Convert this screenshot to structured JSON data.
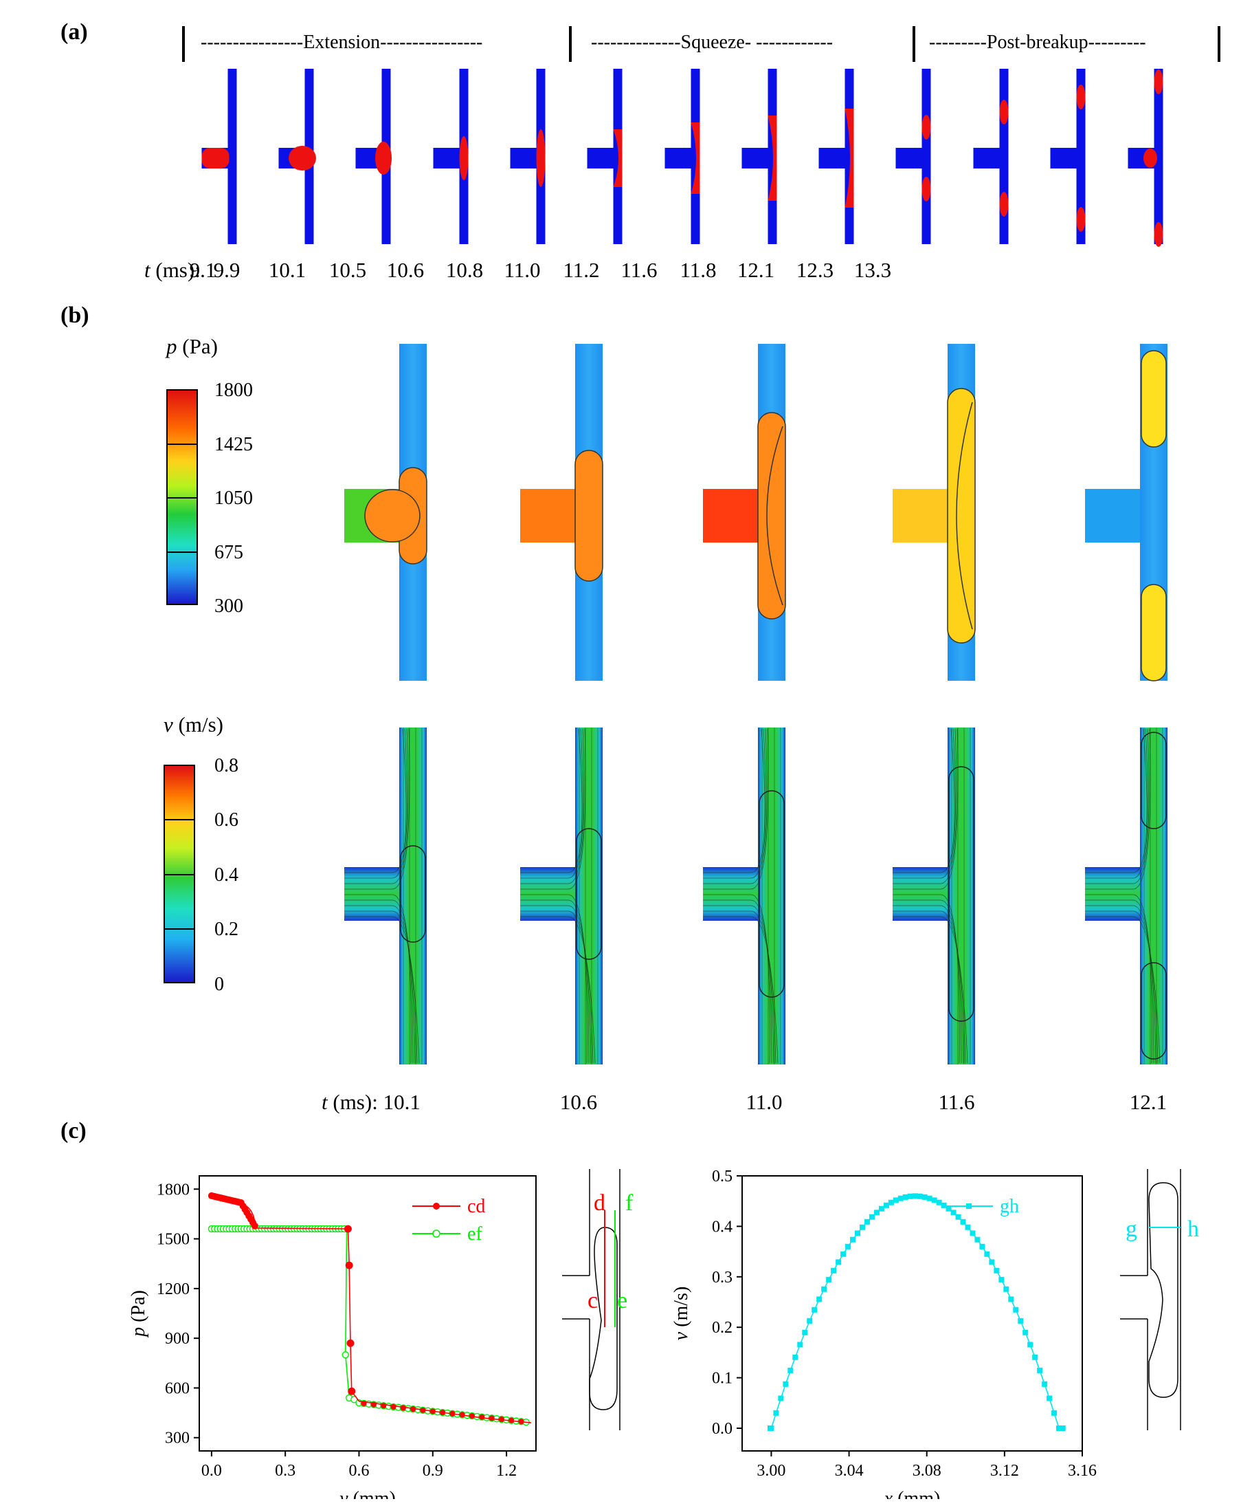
{
  "panel_a": {
    "label": "(a)",
    "phases": {
      "extension": "----------------Extension----------------",
      "squeeze": "--------------Squeeze- ------------",
      "post_breakup": "---------Post-breakup---------"
    },
    "time_prefix_italic": "t",
    "time_prefix_rest": " (ms): ",
    "times": [
      "9.1",
      "9.9",
      "10.1",
      "10.5",
      "10.6",
      "10.8",
      "11.0",
      "11.2",
      "11.6",
      "11.8",
      "12.1",
      "12.3",
      "13.3"
    ]
  },
  "panel_b": {
    "label": "(b)",
    "pressure_colorbar": {
      "title_italic": "p",
      "title_rest": " (Pa)",
      "ticks": [
        "1800",
        "1425",
        "1050",
        "675",
        "300"
      ]
    },
    "velocity_colorbar": {
      "title_italic": "v",
      "title_rest": " (m/s)",
      "ticks": [
        "0.8",
        "0.6",
        "0.4",
        "0.2",
        "0"
      ]
    },
    "time_prefix_italic": "t",
    "time_prefix_rest": " (ms): ",
    "times": [
      "10.1",
      "10.6",
      "11.0",
      "11.6",
      "12.1"
    ]
  },
  "panel_c": {
    "label": "(c)",
    "colors": {
      "cd": "#ff0000",
      "ef": "#00ee00",
      "gh": "#00e5ee"
    },
    "schematic_left_labels": [
      "d",
      "f",
      "c",
      "e"
    ],
    "schematic_right_labels": [
      "g",
      "h"
    ]
  },
  "chart_data": [
    {
      "type": "line",
      "xlabel_italic": "y",
      "xlabel": "y (mm)",
      "ylabel": "p (Pa)",
      "xlim": [
        -0.05,
        1.32
      ],
      "ylim": [
        220,
        1880
      ],
      "xticks": [
        "0.0",
        "0.3",
        "0.6",
        "0.9",
        "1.2"
      ],
      "yticks": [
        "300",
        "600",
        "900",
        "1200",
        "1500",
        "1800"
      ],
      "legend_position": "top-right",
      "series": [
        {
          "name": "cd",
          "x": [
            0.0,
            0.02,
            0.04,
            0.06,
            0.08,
            0.1,
            0.12,
            0.13,
            0.14,
            0.15,
            0.16,
            0.17,
            0.175,
            0.18,
            0.55,
            0.555,
            0.56,
            0.565,
            0.57,
            0.6,
            0.7,
            0.8,
            0.9,
            1.0,
            1.1,
            1.2,
            1.3
          ],
          "y": [
            1760,
            1755,
            1750,
            1745,
            1738,
            1730,
            1718,
            1710,
            1700,
            1688,
            1670,
            1640,
            1610,
            1565,
            1560,
            1560,
            1340,
            870,
            580,
            520,
            500,
            480,
            460,
            440,
            420,
            405,
            390
          ]
        },
        {
          "name": "ef",
          "x": [
            0.0,
            0.1,
            0.2,
            0.3,
            0.4,
            0.5,
            0.55,
            0.545,
            0.56,
            0.58,
            0.6,
            0.7,
            0.8,
            0.9,
            1.0,
            1.1,
            1.2,
            1.3
          ],
          "y": [
            1560,
            1560,
            1560,
            1560,
            1560,
            1560,
            1560,
            800,
            540,
            520,
            510,
            495,
            475,
            455,
            435,
            418,
            402,
            390
          ]
        }
      ]
    },
    {
      "type": "line",
      "xlabel_italic": "x",
      "xlabel": "x (mm)",
      "ylabel": "v (m/s)",
      "xlim": [
        2.985,
        3.16
      ],
      "ylim": [
        -0.045,
        0.5
      ],
      "xticks": [
        "3.00",
        "3.04",
        "3.08",
        "3.12",
        "3.16"
      ],
      "yticks": [
        "0.0",
        "0.1",
        "0.2",
        "0.3",
        "0.4",
        "0.5"
      ],
      "legend_position": "top-right",
      "series": [
        {
          "name": "gh",
          "x_start": 3.0,
          "x_end": 3.148,
          "peak": 0.46,
          "plateau": 0.0
        }
      ]
    }
  ]
}
